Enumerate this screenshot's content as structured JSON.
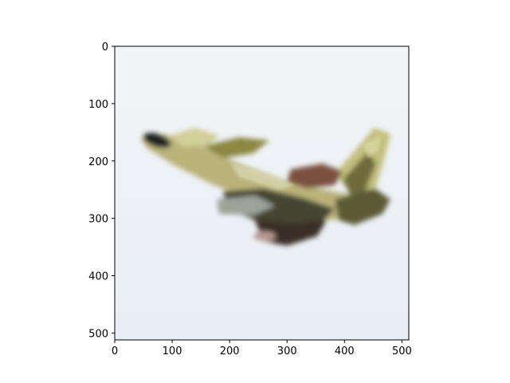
{
  "figure": {
    "background": "#ffffff",
    "frame_color": "#000000",
    "image_background": "#f1f3f6",
    "image_background_bottom": "#e7edf5",
    "subject": "camouflaged fighter jet in flight, blurred"
  },
  "axes": {
    "x_ticks": [
      "0",
      "100",
      "200",
      "300",
      "400",
      "500"
    ],
    "y_ticks": [
      "0",
      "100",
      "200",
      "300",
      "400",
      "500"
    ],
    "x_tick_values": [
      0,
      100,
      200,
      300,
      400,
      500
    ],
    "y_tick_values": [
      0,
      100,
      200,
      300,
      400,
      500
    ],
    "x_range": [
      0,
      512
    ],
    "y_range": [
      512,
      0
    ]
  },
  "colors": {
    "camo_olive": "#8b8a4a",
    "camo_tan": "#c9c98a",
    "camo_dark": "#3d3d2a",
    "camo_brown": "#6e4a3a",
    "nose_dark": "#1e2222"
  }
}
